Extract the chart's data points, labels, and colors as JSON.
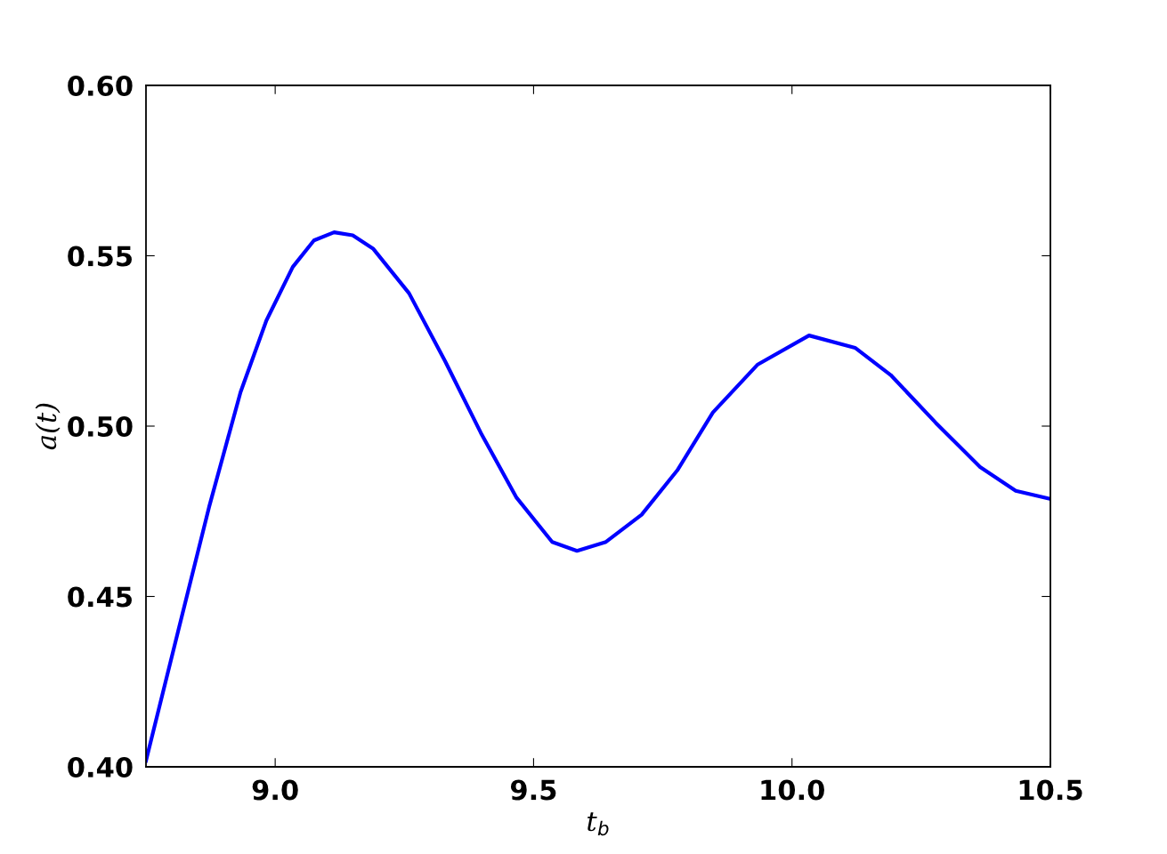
{
  "chart_data": {
    "type": "line",
    "xlabel": "t$_{b}$",
    "ylabel": "a(t)",
    "series": [
      {
        "color": "#0000ff",
        "x": [
          8.75,
          8.812,
          8.872,
          8.933,
          8.983,
          9.034,
          9.075,
          9.114,
          9.15,
          9.19,
          9.259,
          9.329,
          9.398,
          9.467,
          9.536,
          9.584,
          9.64,
          9.709,
          9.778,
          9.847,
          9.933,
          10.033,
          10.122,
          10.191,
          10.278,
          10.364,
          10.433,
          10.5
        ],
        "values": [
          0.4018,
          0.4397,
          0.4762,
          0.51,
          0.531,
          0.5467,
          0.5545,
          0.5569,
          0.556,
          0.552,
          0.539,
          0.519,
          0.498,
          0.479,
          0.466,
          0.4634,
          0.466,
          0.474,
          0.487,
          0.504,
          0.518,
          0.5266,
          0.523,
          0.515,
          0.501,
          0.488,
          0.481,
          0.4786
        ]
      }
    ],
    "xlim": [
      8.75,
      10.5
    ],
    "xticks": [
      {
        "value": 9.0,
        "label": "9.0"
      },
      {
        "value": 9.5,
        "label": "9.5"
      },
      {
        "value": 10.0,
        "label": "10.0"
      },
      {
        "value": 10.5,
        "label": "10.5"
      }
    ],
    "ylim": [
      0.4,
      0.6
    ],
    "yticks": [
      {
        "value": 0.4,
        "label": "0.40"
      },
      {
        "value": 0.45,
        "label": "0.45"
      },
      {
        "value": 0.5,
        "label": "0.50"
      },
      {
        "value": 0.55,
        "label": "0.55"
      },
      {
        "value": 0.6,
        "label": "0.60"
      }
    ],
    "grid": false,
    "marker": "none",
    "line_style": "solid"
  }
}
